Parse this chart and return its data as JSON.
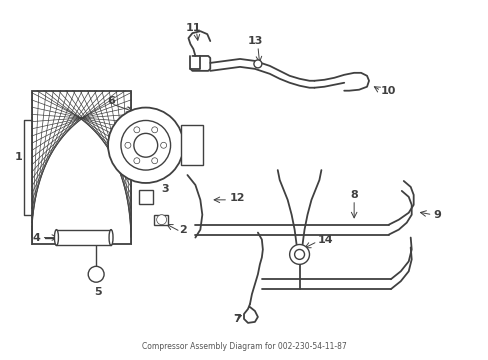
{
  "title": "Compressor Assembly Diagram for 002-230-54-11-87",
  "bg_color": "#ffffff",
  "line_color": "#404040",
  "label_color": "#000000",
  "label_fontsize": 8,
  "fig_width": 4.89,
  "fig_height": 3.6,
  "dpi": 100
}
